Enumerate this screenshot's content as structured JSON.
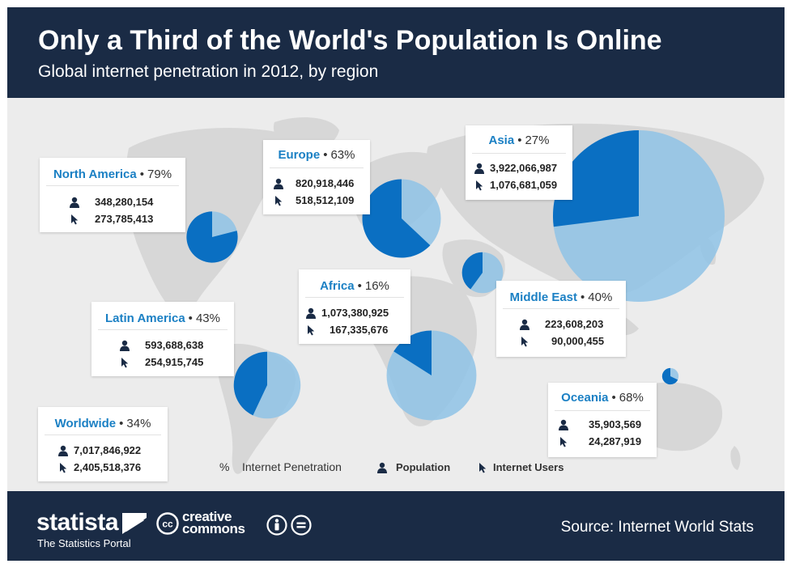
{
  "header": {
    "title": "Only a Third of the World's Population Is Online",
    "subtitle": "Global internet penetration in 2012, by region"
  },
  "colors": {
    "header_bg": "#1a2b45",
    "penetration": "#0a6fc2",
    "offline": "#8fc3e6",
    "accent_text": "#1b80c4",
    "map_bg": "#ececec",
    "land": "#d7d7d7"
  },
  "chart_data": {
    "type": "pie",
    "title": "Only a Third of the World's Population Is Online",
    "subtitle": "Global internet penetration in 2012, by region",
    "regions": [
      {
        "name": "North America",
        "penetration": "79%",
        "population": "348,280,154",
        "internet_users": "273,785,413",
        "share": 0.79
      },
      {
        "name": "Europe",
        "penetration": "63%",
        "population": "820,918,446",
        "internet_users": "518,512,109",
        "share": 0.63
      },
      {
        "name": "Asia",
        "penetration": "27%",
        "population": "3,922,066,987",
        "internet_users": "1,076,681,059",
        "share": 0.27
      },
      {
        "name": "Latin America",
        "penetration": "43%",
        "population": "593,688,638",
        "internet_users": "254,915,745",
        "share": 0.43
      },
      {
        "name": "Africa",
        "penetration": "16%",
        "population": "1,073,380,925",
        "internet_users": "167,335,676",
        "share": 0.16
      },
      {
        "name": "Middle East",
        "penetration": "40%",
        "population": "223,608,203",
        "internet_users": "90,000,455",
        "share": 0.4
      },
      {
        "name": "Oceania",
        "penetration": "68%",
        "population": "35,903,569",
        "internet_users": "24,287,919",
        "share": 0.68
      }
    ],
    "worldwide": {
      "name": "Worldwide",
      "penetration": "34%",
      "population": "7,017,846,922",
      "internet_users": "2,405,518,376"
    },
    "pie_size_basis": "population"
  },
  "legend": {
    "penetration_symbol": "%",
    "penetration_label": "Internet Penetration",
    "population_label": "Population",
    "users_label": "Internet Users"
  },
  "icons": {
    "population": "person-icon",
    "users": "cursor-icon"
  },
  "footer": {
    "brand": "statista",
    "tagline": "The Statistics Portal",
    "cc_line1": "creative",
    "cc_line2": "commons",
    "source": "Source: Internet World Stats"
  }
}
